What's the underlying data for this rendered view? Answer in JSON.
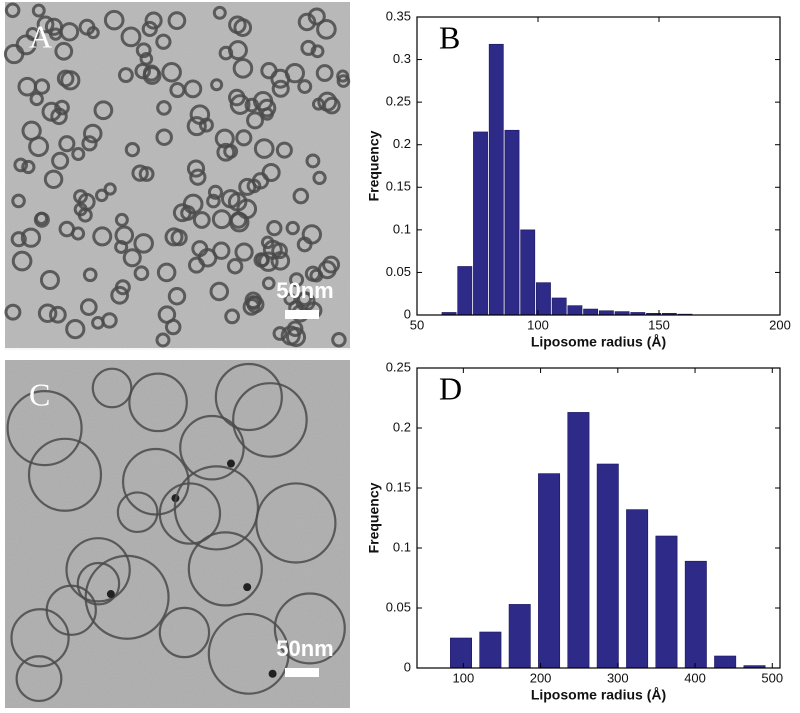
{
  "images": [
    {
      "label": "A",
      "scale_bar": "50nm"
    },
    {
      "label": "C",
      "scale_bar": "50nm"
    }
  ],
  "chart_data": [
    {
      "type": "histogram",
      "panel_label": "B",
      "xlabel": "Liposome radius (Å)",
      "ylabel": "Frequency",
      "bins": [
        60,
        66.5,
        73,
        79.5,
        86,
        92.5,
        99,
        105.5,
        112,
        118.5,
        125,
        131.5,
        138,
        144.5,
        151,
        157.5,
        164
      ],
      "values": [
        0.003,
        0.057,
        0.215,
        0.318,
        0.217,
        0.1,
        0.038,
        0.02,
        0.011,
        0.007,
        0.005,
        0.004,
        0.003,
        0.002,
        0.002,
        0.001
      ],
      "color": "#2e2a87",
      "xlim": [
        50,
        200
      ],
      "xticks": [
        50,
        100,
        150,
        200
      ],
      "ylim": [
        0,
        0.35
      ],
      "yticks": [
        0,
        0.05,
        0.1,
        0.15,
        0.2,
        0.25,
        0.3,
        0.35
      ]
    },
    {
      "type": "histogram",
      "panel_label": "D",
      "xlabel": "Liposome radius (Å)",
      "ylabel": "Frequency",
      "bins": [
        78,
        116,
        154,
        192,
        230,
        268,
        306,
        344,
        382,
        420,
        458,
        496
      ],
      "values": [
        0.025,
        0.03,
        0.053,
        0.162,
        0.213,
        0.17,
        0.132,
        0.11,
        0.089,
        0.01,
        0.002
      ],
      "color": "#2e2a87",
      "xlim": [
        40,
        510
      ],
      "xticks": [
        100,
        200,
        300,
        400,
        500
      ],
      "ylim": [
        0,
        0.25
      ],
      "yticks": [
        0,
        0.05,
        0.1,
        0.15,
        0.2,
        0.25
      ]
    }
  ]
}
